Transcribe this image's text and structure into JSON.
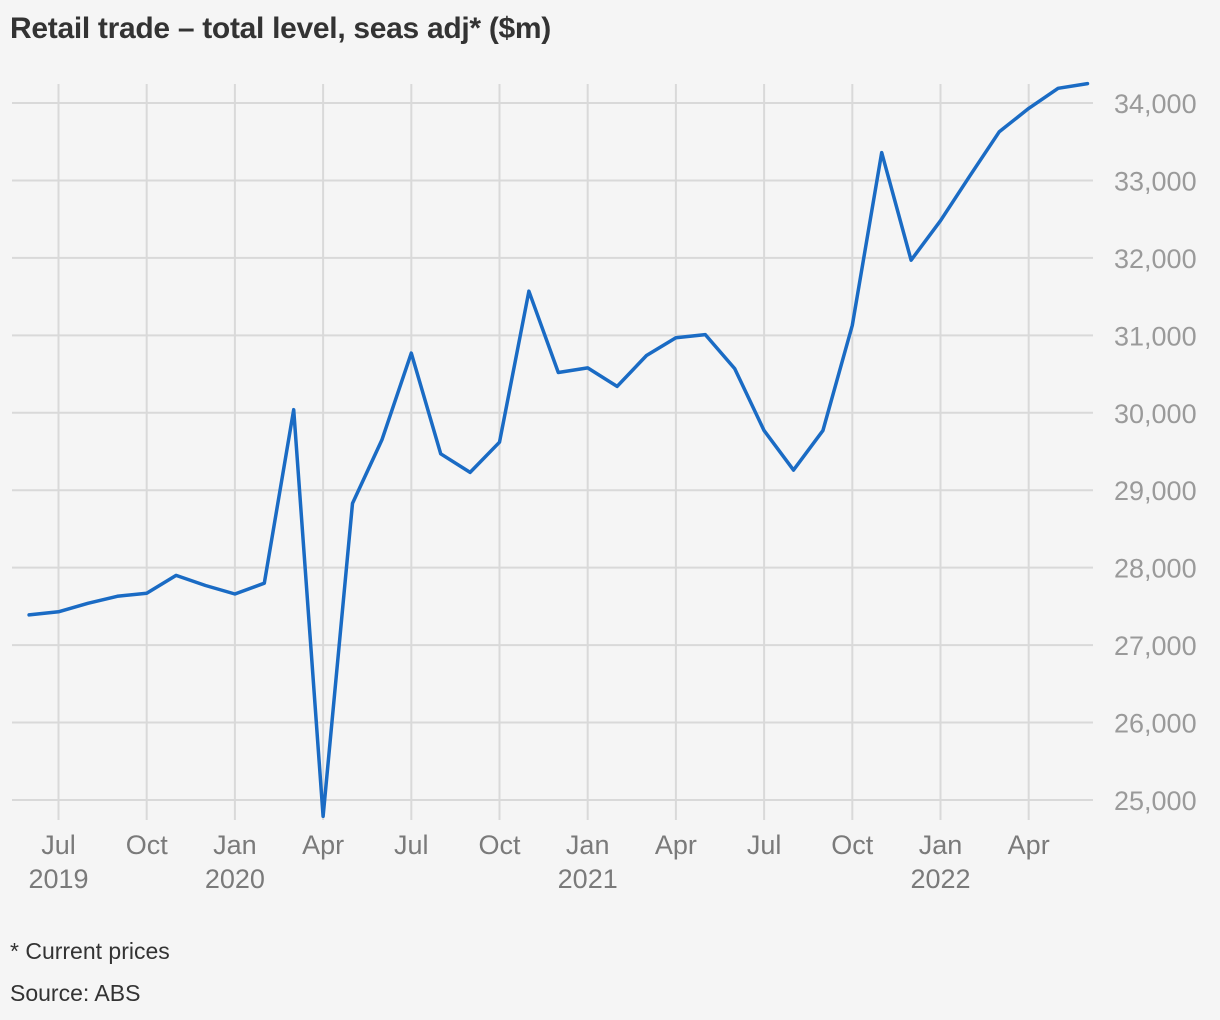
{
  "title": "Retail trade – total level, seas adj* ($m)",
  "footnote": "* Current prices",
  "source": "Source: ABS",
  "colors": {
    "line": "#1a6bc4",
    "grid": "#d9d9d9",
    "background": "#f5f5f5"
  },
  "chart_data": {
    "type": "line",
    "title": "Retail trade – total level, seas adj* ($m)",
    "xlabel": "",
    "ylabel": "",
    "ylim": [
      25000,
      34000
    ],
    "yticks": [
      "25,000",
      "26,000",
      "27,000",
      "28,000",
      "29,000",
      "30,000",
      "31,000",
      "32,000",
      "33,000",
      "34,000"
    ],
    "ytick_values": [
      25000,
      26000,
      27000,
      28000,
      29000,
      30000,
      31000,
      32000,
      33000,
      34000
    ],
    "y_axis_position": "right",
    "grid": true,
    "xticks": [
      {
        "month": "Jul",
        "year": "2019"
      },
      {
        "month": "Oct",
        "year": ""
      },
      {
        "month": "Jan",
        "year": "2020"
      },
      {
        "month": "Apr",
        "year": ""
      },
      {
        "month": "Jul",
        "year": ""
      },
      {
        "month": "Oct",
        "year": ""
      },
      {
        "month": "Jan",
        "year": "2021"
      },
      {
        "month": "Apr",
        "year": ""
      },
      {
        "month": "Jul",
        "year": ""
      },
      {
        "month": "Oct",
        "year": ""
      },
      {
        "month": "Jan",
        "year": "2022"
      },
      {
        "month": "Apr",
        "year": ""
      }
    ],
    "series": [
      {
        "x": [
          "2019-06",
          "2019-07",
          "2019-08",
          "2019-09",
          "2019-10",
          "2019-11",
          "2019-12",
          "2020-01",
          "2020-02",
          "2020-03",
          "2020-04",
          "2020-05",
          "2020-06",
          "2020-07",
          "2020-08",
          "2020-09",
          "2020-10",
          "2020-11",
          "2020-12",
          "2021-01",
          "2021-02",
          "2021-03",
          "2021-04",
          "2021-05",
          "2021-06",
          "2021-07",
          "2021-08",
          "2021-09",
          "2021-10",
          "2021-11",
          "2021-12",
          "2022-01",
          "2022-02",
          "2022-03",
          "2022-04",
          "2022-05",
          "2022-06"
        ],
        "values": [
          27390,
          27430,
          27540,
          27630,
          27670,
          27900,
          27770,
          27660,
          27800,
          30040,
          24790,
          28830,
          29650,
          30770,
          29470,
          29230,
          29620,
          31570,
          30520,
          30580,
          30340,
          30740,
          30970,
          31010,
          30570,
          29770,
          29260,
          29770,
          31130,
          33360,
          31970,
          32480,
          33060,
          33630,
          33930,
          34190,
          34250
        ]
      }
    ]
  }
}
